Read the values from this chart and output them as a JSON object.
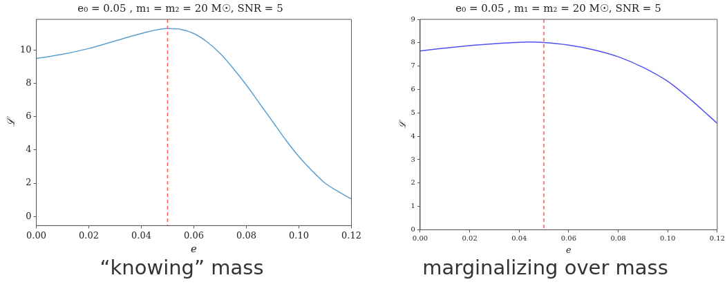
{
  "chart_data": [
    {
      "type": "line",
      "title": "e₀ = 0.05 , m₁ = m₂ = 20 M☉, SNR = 5",
      "xlabel": "e",
      "ylabel": "ℒ",
      "x": [
        0,
        0.01,
        0.02,
        0.03,
        0.04,
        0.05,
        0.055,
        0.06,
        0.065,
        0.07,
        0.075,
        0.08,
        0.085,
        0.09,
        0.095,
        0.1,
        0.105,
        0.11,
        0.115,
        0.12
      ],
      "series": [
        {
          "color": "#5b9fd0",
          "values": [
            9.5,
            9.75,
            10.1,
            10.55,
            11.0,
            11.3,
            11.25,
            11.0,
            10.5,
            9.8,
            8.9,
            7.9,
            6.8,
            5.7,
            4.6,
            3.6,
            2.75,
            2.0,
            1.5,
            1.05
          ]
        }
      ],
      "xlim": [
        0,
        0.12
      ],
      "xticks": [
        {
          "value": 0,
          "label": "0.00"
        },
        {
          "value": 0.02,
          "label": "0.02"
        },
        {
          "value": 0.04,
          "label": "0.04"
        },
        {
          "value": 0.06,
          "label": "0.06"
        },
        {
          "value": 0.08,
          "label": "0.08"
        },
        {
          "value": 0.1,
          "label": "0.10"
        },
        {
          "value": 0.12,
          "label": "0.12"
        }
      ],
      "ylim": [
        -0.55,
        11.85
      ],
      "yticks": [
        0,
        2,
        4,
        6,
        8,
        10
      ],
      "ref_lines": [
        {
          "axis": "x",
          "value": 0.05,
          "color": "#ff5555",
          "line_style": "dashed"
        }
      ],
      "annotations": [
        "“knowing” mass"
      ],
      "grid": false,
      "legend": false,
      "marker": "none"
    },
    {
      "type": "line",
      "title": "e₀ = 0.05 , m₁ = m₂ = 20 M☉, SNR = 5",
      "xlabel": "e",
      "ylabel": "ℒ",
      "x": [
        0,
        0.01,
        0.02,
        0.03,
        0.04,
        0.045,
        0.05,
        0.06,
        0.07,
        0.08,
        0.09,
        0.1,
        0.11,
        0.12
      ],
      "series": [
        {
          "color": "#5050f5",
          "values": [
            7.65,
            7.77,
            7.88,
            7.96,
            8.02,
            8.03,
            8.01,
            7.9,
            7.7,
            7.4,
            6.95,
            6.35,
            5.5,
            4.55
          ]
        }
      ],
      "xlim": [
        0,
        0.12
      ],
      "xticks": [
        {
          "value": 0,
          "label": "0.00"
        },
        {
          "value": 0.02,
          "label": "0.02"
        },
        {
          "value": 0.04,
          "label": "0.04"
        },
        {
          "value": 0.06,
          "label": "0.06"
        },
        {
          "value": 0.08,
          "label": "0.08"
        },
        {
          "value": 0.1,
          "label": "0.10"
        },
        {
          "value": 0.12,
          "label": "0.12"
        }
      ],
      "ylim": [
        0,
        9
      ],
      "yticks": [
        0,
        1,
        2,
        3,
        4,
        5,
        6,
        7,
        8,
        9
      ],
      "ref_lines": [
        {
          "axis": "x",
          "value": 0.05,
          "color": "#ff5555",
          "line_style": "dashed"
        }
      ],
      "annotations": [
        "marginalizing over mass"
      ],
      "grid": false,
      "legend": false,
      "marker": "none"
    }
  ]
}
